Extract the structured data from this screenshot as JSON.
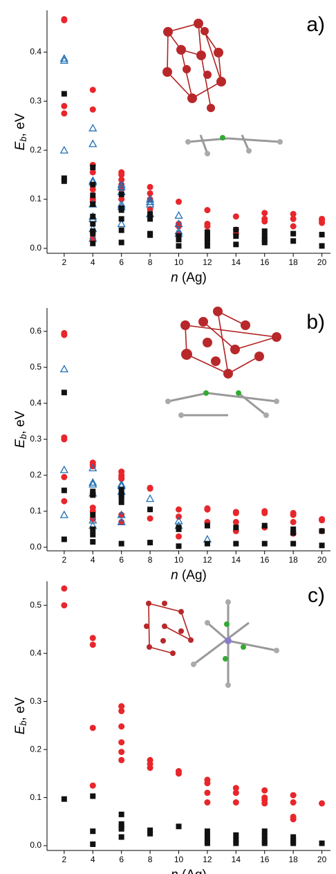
{
  "chart_data": [
    {
      "type": "scatter",
      "panel_label": "a)",
      "ylabel": {
        "symbol": "E",
        "subscript": "b",
        "unit": ", eV"
      },
      "xlabel": {
        "symbol": "n",
        "unit": " (Ag)"
      },
      "xlim": [
        0.8,
        20.6
      ],
      "xticks": [
        2,
        4,
        6,
        8,
        10,
        12,
        14,
        16,
        18,
        20
      ],
      "ylim": [
        -0.01,
        0.485
      ],
      "yticks": [
        {
          "value": 0,
          "label": "0.0"
        },
        0.1,
        0.2,
        0.3,
        0.4
      ],
      "series": [
        {
          "color": "#e8262b",
          "marker": "circle",
          "x": [
            2,
            2,
            2,
            2,
            4,
            4,
            4,
            4,
            4,
            4,
            4,
            4,
            4,
            6,
            6,
            6,
            6,
            6,
            6,
            8,
            8,
            8,
            8,
            10,
            10,
            10,
            10,
            12,
            12,
            12,
            14,
            14,
            14,
            16,
            16,
            16,
            18,
            18,
            18,
            20,
            20,
            20
          ],
          "values": [
            0.467,
            0.465,
            0.29,
            0.275,
            0.323,
            0.283,
            0.17,
            0.155,
            0.12,
            0.1,
            0.095,
            0.02,
            0.018,
            0.155,
            0.15,
            0.14,
            0.13,
            0.12,
            0.1,
            0.125,
            0.112,
            0.1,
            0.08,
            0.095,
            0.05,
            0.045,
            0.03,
            0.078,
            0.05,
            0.045,
            0.065,
            0.038,
            0.03,
            0.072,
            0.06,
            0.055,
            0.07,
            0.06,
            0.045,
            0.06,
            0.057,
            0.052
          ]
        },
        {
          "color": "#1f6fb5",
          "marker": "triangle",
          "x": [
            2,
            2,
            2,
            4,
            4,
            4,
            4,
            4,
            4,
            4,
            4,
            4,
            6,
            6,
            6,
            6,
            6,
            6,
            8,
            8,
            8,
            8,
            10,
            10,
            10,
            10
          ],
          "values": [
            0.387,
            0.383,
            0.2,
            0.245,
            0.213,
            0.138,
            0.135,
            0.09,
            0.065,
            0.06,
            0.04,
            0.02,
            0.13,
            0.125,
            0.115,
            0.09,
            0.085,
            0.05,
            0.1,
            0.095,
            0.09,
            0.07,
            0.067,
            0.05,
            0.035,
            0.03
          ]
        },
        {
          "color": "#111111",
          "marker": "square",
          "x": [
            2,
            2,
            2,
            4,
            4,
            4,
            4,
            4,
            4,
            4,
            4,
            4,
            6,
            6,
            6,
            6,
            6,
            6,
            8,
            8,
            8,
            8,
            10,
            10,
            10,
            10,
            12,
            12,
            12,
            12,
            12,
            14,
            14,
            14,
            16,
            16,
            16,
            16,
            18,
            18,
            20,
            20
          ],
          "values": [
            0.315,
            0.143,
            0.137,
            0.165,
            0.13,
            0.108,
            0.09,
            0.065,
            0.05,
            0.035,
            0.03,
            0.01,
            0.11,
            0.082,
            0.078,
            0.06,
            0.037,
            0.012,
            0.07,
            0.06,
            0.03,
            0.027,
            0.025,
            0.02,
            0.018,
            0.005,
            0.033,
            0.025,
            0.02,
            0.013,
            0.005,
            0.038,
            0.025,
            0.008,
            0.035,
            0.025,
            0.018,
            0.012,
            0.03,
            0.015,
            0.028,
            0.005
          ]
        }
      ]
    },
    {
      "type": "scatter",
      "panel_label": "b)",
      "ylabel": {
        "symbol": "E",
        "subscript": "b",
        "unit": ", eV"
      },
      "xlabel": {
        "symbol": "n",
        "unit": " (Ag)"
      },
      "xlim": [
        0.8,
        20.6
      ],
      "xticks": [
        2,
        4,
        6,
        8,
        10,
        12,
        14,
        16,
        18,
        20
      ],
      "ylim": [
        -0.01,
        0.665
      ],
      "yticks": [
        {
          "value": 0,
          "label": "0.0"
        },
        0.1,
        0.2,
        0.3,
        0.4,
        0.5,
        0.6
      ],
      "series": [
        {
          "color": "#e8262b",
          "marker": "circle",
          "x": [
            2,
            2,
            2,
            2,
            2,
            2,
            4,
            4,
            4,
            4,
            4,
            4,
            4,
            6,
            6,
            6,
            6,
            6,
            6,
            8,
            8,
            8,
            10,
            10,
            10,
            12,
            12,
            12,
            14,
            14,
            14,
            14,
            16,
            16,
            16,
            18,
            18,
            18,
            18,
            20,
            20,
            20
          ],
          "values": [
            0.595,
            0.59,
            0.305,
            0.3,
            0.195,
            0.128,
            0.235,
            0.23,
            0.225,
            0.15,
            0.11,
            0.1,
            0.078,
            0.21,
            0.2,
            0.195,
            0.19,
            0.09,
            0.07,
            0.165,
            0.163,
            0.08,
            0.105,
            0.085,
            0.03,
            0.108,
            0.105,
            0.07,
            0.098,
            0.095,
            0.07,
            0.045,
            0.1,
            0.095,
            0.055,
            0.095,
            0.09,
            0.07,
            0.038,
            0.078,
            0.075,
            0.045
          ]
        },
        {
          "color": "#1f6fb5",
          "marker": "triangle",
          "x": [
            2,
            2,
            2,
            4,
            4,
            4,
            4,
            4,
            4,
            6,
            6,
            6,
            6,
            6,
            8,
            10,
            10,
            12
          ],
          "values": [
            0.495,
            0.215,
            0.09,
            0.22,
            0.18,
            0.175,
            0.15,
            0.075,
            0.06,
            0.175,
            0.17,
            0.155,
            0.09,
            0.07,
            0.135,
            0.073,
            0.06,
            0.022
          ]
        },
        {
          "color": "#111111",
          "marker": "square",
          "x": [
            2,
            2,
            2,
            4,
            4,
            4,
            4,
            4,
            4,
            6,
            6,
            6,
            6,
            6,
            8,
            8,
            10,
            10,
            10,
            12,
            12,
            14,
            14,
            16,
            16,
            18,
            18,
            18,
            20,
            20
          ],
          "values": [
            0.43,
            0.158,
            0.022,
            0.155,
            0.145,
            0.09,
            0.05,
            0.035,
            0.015,
            0.16,
            0.145,
            0.14,
            0.125,
            0.01,
            0.105,
            0.013,
            0.055,
            0.05,
            0.003,
            0.06,
            0.01,
            0.055,
            0.01,
            0.06,
            0.01,
            0.05,
            0.04,
            0.01,
            0.045,
            0.005
          ]
        }
      ]
    },
    {
      "type": "scatter",
      "panel_label": "c)",
      "ylabel": {
        "symbol": "E",
        "subscript": "b",
        "unit": ", eV"
      },
      "xlabel": {
        "symbol": "n",
        "unit": " (Ag)"
      },
      "xlim": [
        0.8,
        20.6
      ],
      "xticks": [
        2,
        4,
        6,
        8,
        10,
        12,
        14,
        16,
        18,
        20
      ],
      "ylim": [
        -0.01,
        0.55
      ],
      "yticks": [
        {
          "value": 0,
          "label": "0.0"
        },
        0.1,
        0.2,
        0.3,
        0.4,
        0.5
      ],
      "series": [
        {
          "color": "#e8262b",
          "marker": "circle",
          "x": [
            2,
            2,
            4,
            4,
            4,
            4,
            6,
            6,
            6,
            6,
            6,
            6,
            8,
            8,
            8,
            10,
            10,
            12,
            12,
            12,
            12,
            14,
            14,
            14,
            16,
            16,
            16,
            16,
            18,
            18,
            18,
            18,
            20
          ],
          "values": [
            0.535,
            0.5,
            0.432,
            0.418,
            0.245,
            0.125,
            0.29,
            0.28,
            0.248,
            0.215,
            0.195,
            0.178,
            0.178,
            0.17,
            0.162,
            0.155,
            0.15,
            0.137,
            0.13,
            0.11,
            0.09,
            0.12,
            0.11,
            0.09,
            0.115,
            0.1,
            0.095,
            0.088,
            0.105,
            0.09,
            0.06,
            0.055,
            0.088
          ]
        },
        {
          "color": "#111111",
          "marker": "square",
          "x": [
            2,
            4,
            4,
            4,
            6,
            6,
            6,
            6,
            6,
            8,
            8,
            10,
            12,
            12,
            12,
            12,
            14,
            14,
            14,
            16,
            16,
            16,
            16,
            18,
            18,
            18,
            20
          ],
          "values": [
            0.097,
            0.103,
            0.03,
            0.003,
            0.065,
            0.045,
            0.04,
            0.035,
            0.018,
            0.032,
            0.025,
            0.04,
            0.03,
            0.02,
            0.01,
            0.005,
            0.022,
            0.012,
            0.005,
            0.03,
            0.02,
            0.01,
            0.005,
            0.018,
            0.01,
            0.005,
            0.005
          ]
        }
      ]
    }
  ]
}
